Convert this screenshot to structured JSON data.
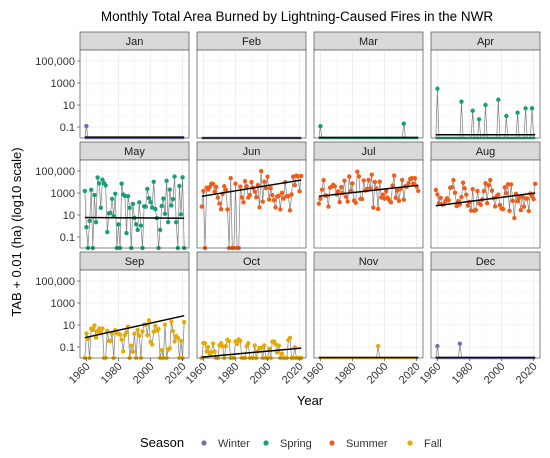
{
  "chart_data": {
    "type": "line",
    "title": "Monthly Total Area Burned by Lightning-Caused Fires in the NWR",
    "xlabel": "Year",
    "ylabel": "TAB + 0.01 (ha) (log10 scale)",
    "y_scale": "log10",
    "xlim": [
      1956,
      2024
    ],
    "ylim": [
      0.01,
      1000000
    ],
    "x_ticks": [
      1960,
      1980,
      2000,
      2020
    ],
    "y_ticks": [
      0.1,
      10,
      1000,
      100000
    ],
    "y_tick_labels": [
      "0.1",
      "10",
      "1000",
      "100,000"
    ],
    "grid": true,
    "facet_layout": {
      "rows": 3,
      "cols": 4
    },
    "legend": {
      "title": "Season",
      "position": "bottom",
      "entries": [
        {
          "label": "Winter",
          "color": "#7570b3"
        },
        {
          "label": "Spring",
          "color": "#1b9e77"
        },
        {
          "label": "Summer",
          "color": "#f25c19"
        },
        {
          "label": "Fall",
          "color": "#e6ab02"
        }
      ]
    },
    "baseline_value": 0.01,
    "panels": [
      {
        "month": "Jan",
        "season": "Winter",
        "spikes": [
          [
            1960,
            0.12
          ]
        ],
        "trend": [
          0.012,
          0.012
        ]
      },
      {
        "month": "Feb",
        "season": "Winter",
        "spikes": [],
        "trend": [
          0.01,
          0.01
        ]
      },
      {
        "month": "Mar",
        "season": "Spring",
        "spikes": [
          [
            1960,
            0.12
          ],
          [
            2012,
            0.2
          ]
        ],
        "trend": [
          0.011,
          0.011
        ]
      },
      {
        "month": "Apr",
        "season": "Spring",
        "spikes": [
          [
            1960,
            300
          ],
          [
            1975,
            20
          ],
          [
            1982,
            3
          ],
          [
            1986,
            0.5
          ],
          [
            1990,
            10
          ],
          [
            1998,
            30
          ],
          [
            2003,
            1
          ],
          [
            2010,
            2
          ],
          [
            2015,
            5
          ],
          [
            2019,
            5
          ]
        ],
        "trend": [
          0.02,
          0.02
        ]
      },
      {
        "month": "May",
        "season": "Spring",
        "seed": 5,
        "center": 2.0,
        "spread": 3.2,
        "cap": 5.2,
        "floor_prob": 0.2,
        "trend": [
          6,
          5
        ]
      },
      {
        "month": "Jun",
        "season": "Summer",
        "seed": 6,
        "center": 3.2,
        "spread": 2.0,
        "cap": 5.3,
        "floor_prob": 0.03,
        "trend": [
          500,
          15000
        ]
      },
      {
        "month": "Jul",
        "season": "Summer",
        "seed": 7,
        "center": 3.3,
        "spread": 1.8,
        "cap": 5.3,
        "floor_prob": 0.0,
        "trend": [
          500,
          5000
        ]
      },
      {
        "month": "Aug",
        "season": "Summer",
        "seed": 8,
        "center": 2.5,
        "spread": 1.9,
        "cap": 5.2,
        "floor_prob": 0.0,
        "trend": [
          70,
          1000
        ]
      },
      {
        "month": "Sep",
        "season": "Fall",
        "seed": 9,
        "center": 0.2,
        "spread": 1.6,
        "cap": 4.8,
        "floor_prob": 0.25,
        "trend": [
          0.7,
          70
        ]
      },
      {
        "month": "Oct",
        "season": "Fall",
        "seed": 10,
        "center": -0.8,
        "spread": 0.9,
        "cap": 2.0,
        "floor_prob": 0.45,
        "trend": [
          0.012,
          0.08
        ]
      },
      {
        "month": "Nov",
        "season": "Fall",
        "spikes": [
          [
            1996,
            0.12
          ]
        ],
        "trend": [
          0.011,
          0.011
        ]
      },
      {
        "month": "Dec",
        "season": "Winter",
        "spikes": [
          [
            1960,
            0.12
          ],
          [
            1974,
            0.2
          ]
        ],
        "trend": [
          0.011,
          0.011
        ]
      }
    ]
  }
}
